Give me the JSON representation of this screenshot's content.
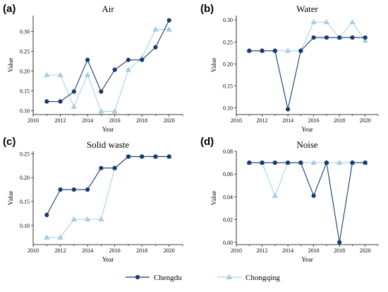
{
  "colors": {
    "Chengdu": "#163a6e",
    "Chongqing": "#a9d2ea"
  },
  "legend": [
    {
      "name": "Chengdu",
      "marker": "circle"
    },
    {
      "name": "Chongqing",
      "marker": "triangle"
    }
  ],
  "chart_data": [
    {
      "type": "line",
      "panel": "(a)",
      "title": "Air",
      "xlabel": "Year",
      "ylabel": "Value",
      "x": [
        2011,
        2012,
        2013,
        2014,
        2015,
        2016,
        2017,
        2018,
        2019,
        2020
      ],
      "xlim": [
        2010,
        2021
      ],
      "xticks": [
        2010,
        2012,
        2014,
        2016,
        2018,
        2020
      ],
      "ylim": [
        0.09,
        0.34
      ],
      "yticks": [
        0.1,
        0.15,
        0.2,
        0.25,
        0.3
      ],
      "ytick_labels": [
        "0.10",
        "0.15",
        "0.20",
        "0.25",
        "0.30"
      ],
      "series": [
        {
          "name": "Chengdu",
          "values": [
            0.123,
            0.123,
            0.148,
            0.228,
            0.148,
            0.203,
            0.228,
            0.228,
            0.26,
            0.328
          ]
        },
        {
          "name": "Chongqing",
          "values": [
            0.19,
            0.19,
            0.11,
            0.19,
            0.098,
            0.098,
            0.203,
            0.233,
            0.305,
            0.305
          ]
        }
      ]
    },
    {
      "type": "line",
      "panel": "(b)",
      "title": "Water",
      "xlabel": "Year",
      "ylabel": "Value",
      "x": [
        2011,
        2012,
        2013,
        2014,
        2015,
        2016,
        2017,
        2018,
        2019,
        2020
      ],
      "xlim": [
        2010,
        2021
      ],
      "xticks": [
        2010,
        2012,
        2014,
        2016,
        2018,
        2020
      ],
      "ylim": [
        0.085,
        0.31
      ],
      "yticks": [
        0.1,
        0.15,
        0.2,
        0.25,
        0.3
      ],
      "ytick_labels": [
        "0.10",
        "0.15",
        "0.20",
        "0.25",
        "0.30"
      ],
      "series": [
        {
          "name": "Chengdu",
          "values": [
            0.23,
            0.23,
            0.23,
            0.097,
            0.23,
            0.26,
            0.26,
            0.26,
            0.26,
            0.26
          ]
        },
        {
          "name": "Chongqing",
          "values": [
            0.23,
            0.23,
            0.23,
            0.23,
            0.23,
            0.295,
            0.295,
            0.26,
            0.295,
            0.253
          ]
        }
      ]
    },
    {
      "type": "line",
      "panel": "(c)",
      "title": "Solid waste",
      "xlabel": "Year",
      "ylabel": "Value",
      "x": [
        2011,
        2012,
        2013,
        2014,
        2015,
        2016,
        2017,
        2018,
        2019,
        2020
      ],
      "xlim": [
        2010,
        2021
      ],
      "xticks": [
        2010,
        2012,
        2014,
        2016,
        2018,
        2020
      ],
      "ylim": [
        0.06,
        0.255
      ],
      "yticks": [
        0.1,
        0.15,
        0.2,
        0.25
      ],
      "ytick_labels": [
        "0.10",
        "0.15",
        "0.20",
        "0.25"
      ],
      "series": [
        {
          "name": "Chengdu",
          "values": [
            0.122,
            0.175,
            0.175,
            0.175,
            0.22,
            0.22,
            0.244,
            0.244,
            0.244,
            0.244
          ]
        },
        {
          "name": "Chongqing",
          "values": [
            0.075,
            0.075,
            0.113,
            0.113,
            0.113,
            0.22,
            0.244,
            0.244,
            0.244,
            0.244
          ]
        }
      ]
    },
    {
      "type": "line",
      "panel": "(d)",
      "title": "Noise",
      "xlabel": "Year",
      "ylabel": "Value",
      "x": [
        2011,
        2012,
        2013,
        2014,
        2015,
        2016,
        2017,
        2018,
        2019,
        2020
      ],
      "xlim": [
        2010,
        2021
      ],
      "xticks": [
        2010,
        2012,
        2014,
        2016,
        2018,
        2020
      ],
      "ylim": [
        -0.002,
        0.08
      ],
      "yticks": [
        0.0,
        0.02,
        0.04,
        0.06,
        0.08
      ],
      "ytick_labels": [
        "0.00",
        "0.02",
        "0.04",
        "0.06",
        "0.08"
      ],
      "series": [
        {
          "name": "Chengdu",
          "values": [
            0.07,
            0.07,
            0.07,
            0.07,
            0.07,
            0.041,
            0.07,
            0.0,
            0.07,
            0.07
          ]
        },
        {
          "name": "Chongqing",
          "values": [
            0.07,
            0.07,
            0.041,
            0.07,
            0.07,
            0.07,
            0.07,
            0.07,
            0.07,
            0.07
          ]
        }
      ]
    }
  ]
}
